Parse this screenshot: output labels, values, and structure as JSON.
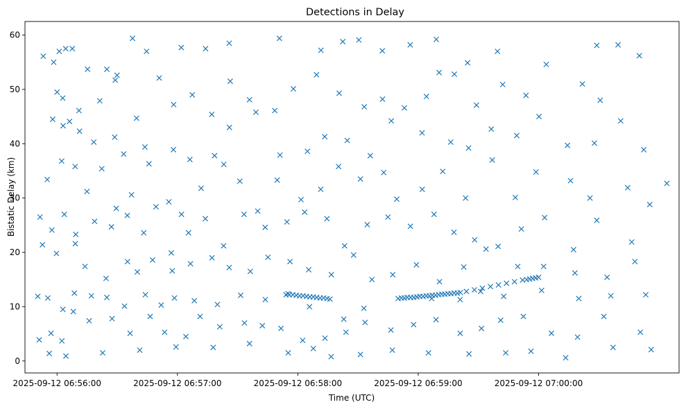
{
  "chart_data": {
    "type": "scatter",
    "title": "Detections in Delay",
    "xlabel": "Time (UTC)",
    "ylabel": "Bistatic Delay (km)",
    "marker": "x",
    "color": "#1f77b4",
    "grid": false,
    "legend": "none",
    "x_unit": "seconds after 2025-09-12 06:55:00 UTC",
    "xlim": [
      44,
      370
    ],
    "ylim": [
      -2.2,
      62.5
    ],
    "x_ticks": [
      {
        "value": 60,
        "label": "2025-09-12 06:56:00"
      },
      {
        "value": 120,
        "label": "2025-09-12 06:57:00"
      },
      {
        "value": 180,
        "label": "2025-09-12 06:58:00"
      },
      {
        "value": 240,
        "label": "2025-09-12 06:59:00"
      },
      {
        "value": 300,
        "label": "2025-09-12 07:00:00"
      }
    ],
    "y_ticks": [
      {
        "value": 0,
        "label": "0"
      },
      {
        "value": 10,
        "label": "10"
      },
      {
        "value": 20,
        "label": "20"
      },
      {
        "value": 30,
        "label": "30"
      },
      {
        "value": 40,
        "label": "40"
      },
      {
        "value": 50,
        "label": "50"
      },
      {
        "value": 60,
        "label": "60"
      }
    ],
    "points": [
      [
        53.1,
        56.1
      ],
      [
        58.3,
        55.0
      ],
      [
        61.1,
        57.0
      ],
      [
        64.3,
        57.5
      ],
      [
        67.6,
        57.5
      ],
      [
        75.2,
        53.7
      ],
      [
        84.8,
        53.7
      ],
      [
        89.9,
        52.6
      ],
      [
        97.6,
        59.4
      ],
      [
        104.6,
        57.0
      ],
      [
        121.9,
        57.7
      ],
      [
        134.0,
        57.5
      ],
      [
        145.8,
        58.5
      ],
      [
        170.8,
        59.4
      ],
      [
        191.5,
        57.2
      ],
      [
        202.4,
        58.8
      ],
      [
        210.4,
        59.1
      ],
      [
        222.1,
        57.1
      ],
      [
        236.0,
        58.2
      ],
      [
        249.0,
        59.2
      ],
      [
        264.6,
        54.9
      ],
      [
        279.5,
        57.0
      ],
      [
        303.8,
        54.6
      ],
      [
        329.0,
        58.1
      ],
      [
        339.6,
        58.2
      ],
      [
        350.2,
        56.2
      ],
      [
        60.0,
        49.5
      ],
      [
        62.8,
        48.4
      ],
      [
        70.9,
        46.1
      ],
      [
        81.3,
        47.9
      ],
      [
        89.0,
        51.7
      ],
      [
        99.6,
        44.7
      ],
      [
        110.9,
        52.1
      ],
      [
        118.1,
        47.2
      ],
      [
        127.4,
        49.0
      ],
      [
        137.1,
        45.4
      ],
      [
        146.3,
        51.5
      ],
      [
        155.9,
        48.1
      ],
      [
        168.5,
        46.1
      ],
      [
        177.8,
        50.1
      ],
      [
        189.3,
        52.7
      ],
      [
        200.6,
        49.3
      ],
      [
        213.1,
        46.8
      ],
      [
        222.2,
        48.2
      ],
      [
        233.1,
        46.6
      ],
      [
        244.1,
        48.7
      ],
      [
        250.4,
        53.1
      ],
      [
        258.0,
        52.8
      ],
      [
        269.0,
        47.1
      ],
      [
        282.1,
        50.9
      ],
      [
        293.7,
        48.9
      ],
      [
        321.8,
        51.0
      ],
      [
        330.7,
        48.0
      ],
      [
        57.8,
        44.5
      ],
      [
        63.0,
        43.3
      ],
      [
        66.2,
        44.1
      ],
      [
        71.2,
        42.3
      ],
      [
        78.3,
        40.3
      ],
      [
        88.7,
        41.2
      ],
      [
        93.2,
        38.1
      ],
      [
        103.8,
        39.4
      ],
      [
        118.0,
        38.9
      ],
      [
        126.2,
        37.1
      ],
      [
        138.5,
        37.8
      ],
      [
        145.9,
        43.0
      ],
      [
        159.1,
        45.8
      ],
      [
        171.1,
        37.9
      ],
      [
        184.8,
        38.6
      ],
      [
        193.4,
        41.3
      ],
      [
        204.6,
        40.6
      ],
      [
        216.1,
        37.8
      ],
      [
        226.6,
        44.2
      ],
      [
        241.9,
        42.0
      ],
      [
        256.2,
        40.3
      ],
      [
        265.1,
        39.2
      ],
      [
        276.4,
        42.7
      ],
      [
        289.1,
        41.5
      ],
      [
        300.2,
        45.0
      ],
      [
        314.4,
        39.7
      ],
      [
        327.8,
        40.1
      ],
      [
        340.9,
        44.2
      ],
      [
        352.4,
        38.9
      ],
      [
        55.1,
        33.4
      ],
      [
        62.3,
        36.8
      ],
      [
        69.0,
        35.8
      ],
      [
        74.9,
        31.2
      ],
      [
        82.3,
        35.4
      ],
      [
        89.5,
        28.1
      ],
      [
        97.1,
        30.6
      ],
      [
        105.8,
        36.3
      ],
      [
        115.7,
        29.3
      ],
      [
        122.0,
        27.0
      ],
      [
        131.8,
        31.8
      ],
      [
        143.1,
        36.2
      ],
      [
        151.1,
        33.1
      ],
      [
        160.0,
        27.6
      ],
      [
        169.7,
        33.3
      ],
      [
        181.6,
        29.7
      ],
      [
        191.4,
        31.6
      ],
      [
        200.3,
        35.8
      ],
      [
        211.2,
        33.5
      ],
      [
        222.8,
        34.7
      ],
      [
        229.3,
        29.8
      ],
      [
        242.0,
        31.6
      ],
      [
        252.2,
        34.9
      ],
      [
        263.6,
        30.0
      ],
      [
        276.9,
        37.0
      ],
      [
        288.4,
        30.1
      ],
      [
        298.7,
        34.8
      ],
      [
        315.9,
        33.2
      ],
      [
        325.6,
        30.0
      ],
      [
        344.4,
        31.9
      ],
      [
        355.4,
        28.8
      ],
      [
        363.9,
        32.7
      ],
      [
        51.5,
        26.5
      ],
      [
        57.4,
        24.1
      ],
      [
        63.6,
        27.0
      ],
      [
        69.3,
        23.3
      ],
      [
        78.7,
        25.7
      ],
      [
        87.1,
        24.7
      ],
      [
        95.0,
        26.8
      ],
      [
        103.2,
        23.6
      ],
      [
        109.3,
        28.4
      ],
      [
        116.9,
        19.9
      ],
      [
        125.5,
        23.6
      ],
      [
        133.9,
        26.2
      ],
      [
        143.0,
        21.2
      ],
      [
        153.2,
        27.0
      ],
      [
        163.7,
        24.6
      ],
      [
        174.6,
        25.6
      ],
      [
        183.4,
        27.4
      ],
      [
        194.5,
        26.2
      ],
      [
        203.3,
        21.2
      ],
      [
        214.6,
        25.1
      ],
      [
        224.9,
        26.5
      ],
      [
        236.1,
        24.8
      ],
      [
        247.9,
        27.0
      ],
      [
        257.8,
        23.7
      ],
      [
        268.1,
        22.3
      ],
      [
        279.8,
        21.1
      ],
      [
        291.4,
        24.3
      ],
      [
        303.0,
        26.4
      ],
      [
        317.4,
        20.5
      ],
      [
        329.0,
        25.9
      ],
      [
        346.4,
        21.9
      ],
      [
        52.7,
        21.4
      ],
      [
        59.7,
        19.8
      ],
      [
        69.1,
        21.6
      ],
      [
        73.9,
        17.4
      ],
      [
        84.4,
        15.2
      ],
      [
        95.1,
        18.3
      ],
      [
        100.0,
        16.4
      ],
      [
        107.6,
        18.6
      ],
      [
        117.4,
        16.6
      ],
      [
        126.5,
        17.9
      ],
      [
        137.2,
        19.0
      ],
      [
        145.8,
        17.2
      ],
      [
        156.3,
        16.5
      ],
      [
        165.1,
        19.1
      ],
      [
        176.1,
        18.3
      ],
      [
        185.4,
        16.8
      ],
      [
        196.7,
        15.9
      ],
      [
        207.8,
        19.5
      ],
      [
        216.9,
        15.0
      ],
      [
        227.3,
        15.9
      ],
      [
        239.1,
        17.7
      ],
      [
        250.6,
        14.6
      ],
      [
        262.7,
        17.3
      ],
      [
        273.8,
        20.6
      ],
      [
        289.6,
        17.4
      ],
      [
        302.5,
        17.4
      ],
      [
        318.1,
        16.2
      ],
      [
        334.1,
        15.4
      ],
      [
        348.0,
        18.3
      ],
      [
        50.4,
        11.9
      ],
      [
        55.4,
        11.6
      ],
      [
        62.9,
        9.5
      ],
      [
        68.6,
        12.5
      ],
      [
        77.1,
        12.0
      ],
      [
        84.8,
        11.7
      ],
      [
        93.6,
        10.1
      ],
      [
        104.0,
        12.2
      ],
      [
        111.9,
        10.3
      ],
      [
        118.5,
        11.6
      ],
      [
        128.4,
        11.1
      ],
      [
        139.9,
        10.4
      ],
      [
        151.5,
        12.1
      ],
      [
        163.8,
        11.3
      ],
      [
        175.1,
        12.4
      ],
      [
        185.8,
        10.0
      ],
      [
        196.0,
        11.4
      ],
      [
        202.9,
        7.7
      ],
      [
        212.9,
        9.7
      ],
      [
        246.7,
        11.5
      ],
      [
        260.9,
        11.3
      ],
      [
        271.1,
        12.8
      ],
      [
        282.6,
        11.9
      ],
      [
        301.5,
        13.0
      ],
      [
        320.0,
        11.5
      ],
      [
        336.0,
        12.0
      ],
      [
        353.4,
        12.2
      ],
      [
        51.1,
        3.9
      ],
      [
        57.0,
        5.1
      ],
      [
        62.4,
        3.7
      ],
      [
        68.1,
        9.1
      ],
      [
        76.0,
        7.4
      ],
      [
        87.4,
        7.8
      ],
      [
        96.4,
        5.1
      ],
      [
        106.4,
        8.2
      ],
      [
        113.6,
        5.3
      ],
      [
        124.2,
        4.5
      ],
      [
        131.3,
        8.2
      ],
      [
        141.1,
        6.3
      ],
      [
        153.4,
        7.0
      ],
      [
        162.3,
        6.5
      ],
      [
        171.6,
        6.0
      ],
      [
        182.4,
        3.8
      ],
      [
        193.5,
        4.2
      ],
      [
        204.0,
        5.3
      ],
      [
        213.5,
        7.1
      ],
      [
        226.4,
        5.7
      ],
      [
        237.7,
        6.7
      ],
      [
        248.9,
        7.6
      ],
      [
        260.9,
        5.1
      ],
      [
        271.5,
        6.0
      ],
      [
        281.1,
        7.5
      ],
      [
        292.4,
        8.2
      ],
      [
        306.4,
        5.1
      ],
      [
        319.4,
        4.4
      ],
      [
        332.5,
        8.2
      ],
      [
        350.7,
        5.3
      ],
      [
        56.1,
        1.4
      ],
      [
        64.4,
        0.9
      ],
      [
        82.7,
        1.5
      ],
      [
        101.2,
        2.0
      ],
      [
        119.3,
        2.6
      ],
      [
        137.8,
        2.5
      ],
      [
        155.9,
        3.2
      ],
      [
        175.2,
        1.5
      ],
      [
        187.7,
        2.3
      ],
      [
        196.6,
        0.8
      ],
      [
        211.2,
        1.2
      ],
      [
        227.1,
        2.0
      ],
      [
        245.1,
        1.5
      ],
      [
        265.3,
        1.3
      ],
      [
        283.6,
        1.5
      ],
      [
        296.2,
        1.8
      ],
      [
        313.5,
        0.6
      ],
      [
        337.1,
        2.5
      ],
      [
        356.1,
        2.1
      ],
      [
        174.1,
        12.2
      ],
      [
        175.8,
        12.2
      ],
      [
        177.5,
        12.2
      ],
      [
        179.2,
        12.1
      ],
      [
        180.9,
        12.0
      ],
      [
        182.6,
        12.0
      ],
      [
        184.3,
        11.9
      ],
      [
        186.0,
        11.8
      ],
      [
        187.7,
        11.8
      ],
      [
        189.4,
        11.7
      ],
      [
        191.1,
        11.6
      ],
      [
        192.8,
        11.6
      ],
      [
        194.5,
        11.5
      ],
      [
        230.0,
        11.5
      ],
      [
        231.6,
        11.6
      ],
      [
        233.1,
        11.6
      ],
      [
        234.6,
        11.7
      ],
      [
        236.2,
        11.7
      ],
      [
        237.8,
        11.7
      ],
      [
        239.3,
        11.8
      ],
      [
        240.8,
        11.9
      ],
      [
        242.4,
        11.9
      ],
      [
        244.0,
        12.0
      ],
      [
        245.5,
        12.0
      ],
      [
        247.0,
        12.1
      ],
      [
        248.6,
        12.1
      ],
      [
        250.2,
        12.2
      ],
      [
        251.7,
        12.3
      ],
      [
        253.2,
        12.3
      ],
      [
        254.8,
        12.4
      ],
      [
        256.3,
        12.4
      ],
      [
        257.9,
        12.5
      ],
      [
        259.5,
        12.5
      ],
      [
        261.0,
        12.6
      ],
      [
        264.0,
        12.8
      ],
      [
        268.0,
        13.1
      ],
      [
        272.0,
        13.4
      ],
      [
        276.0,
        13.7
      ],
      [
        280.0,
        14.0
      ],
      [
        284.0,
        14.3
      ],
      [
        288.0,
        14.6
      ],
      [
        292.0,
        14.9
      ],
      [
        294.0,
        15.0
      ],
      [
        295.5,
        15.1
      ],
      [
        297.0,
        15.2
      ],
      [
        298.5,
        15.3
      ],
      [
        300.0,
        15.4
      ]
    ]
  }
}
